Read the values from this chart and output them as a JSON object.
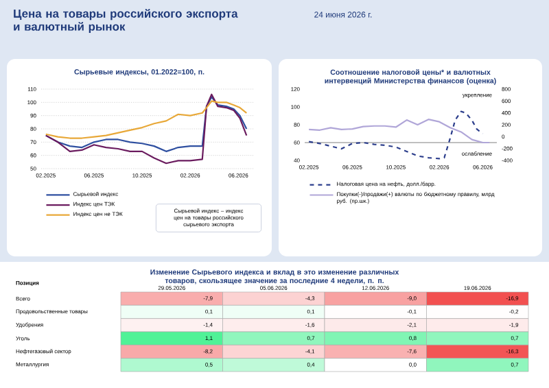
{
  "chart_data": [
    {
      "type": "line",
      "title": "Сырьевые индексы, 01.2022=100, п.",
      "annotations": [
        "Цена на товары российского экспорта и валютный рынок",
        "24 июня 2026 г.",
        "Сырьевой индекс – индекс цен на товары российского сырьевого экспорта"
      ],
      "x": [
        "2025-02-01",
        "2025-03-01",
        "2025-04-01",
        "2025-05-01",
        "2025-06-01",
        "2025-07-01",
        "2025-08-01",
        "2025-09-01",
        "2025-10-01",
        "2025-11-01",
        "2025-12-01",
        "2026-01-01",
        "2026-02-01",
        "2026-03-01",
        "2026-03-12",
        "2026-03-25",
        "2026-04-10",
        "2026-05-01",
        "2026-05-20",
        "2026-06-05",
        "2026-06-22"
      ],
      "series": [
        {
          "name": "Сырьевой индекс",
          "color": "#2e4fa0",
          "values": [
            75,
            70,
            67,
            66,
            70,
            72,
            72,
            70,
            69,
            67,
            63,
            66,
            67,
            67,
            97,
            104,
            98,
            97,
            95,
            90,
            80
          ]
        },
        {
          "name": "Индекс цен ТЭК",
          "color": "#6a1b5e",
          "values": [
            75,
            70,
            63,
            64,
            68,
            66,
            65,
            63,
            63,
            58,
            54,
            56,
            56,
            57,
            97,
            106,
            97,
            96,
            94,
            88,
            75
          ]
        },
        {
          "name": "Индекс цен не ТЭК",
          "color": "#e8a838",
          "values": [
            76,
            74,
            73,
            73,
            74,
            75,
            77,
            79,
            81,
            84,
            86,
            91,
            90,
            92,
            96,
            101,
            100,
            100,
            98,
            96,
            92
          ]
        }
      ],
      "xlim": [
        "2025-01-20",
        "2026-07-10"
      ],
      "xticks": [
        {
          "value": "2025-02",
          "label": "02.2025"
        },
        {
          "value": "2025-06",
          "label": "06.2025"
        },
        {
          "value": "2025-10",
          "label": "10.2025"
        },
        {
          "value": "2026-02",
          "label": "02.2026"
        },
        {
          "value": "2026-06",
          "label": "06.2026"
        }
      ],
      "ylim": [
        50,
        110
      ],
      "yticks": [
        50,
        60,
        70,
        80,
        90,
        100,
        110
      ],
      "grid": "y",
      "legend": "bottom"
    },
    {
      "type": "line",
      "title": "Соотношение налоговой цены* и валютных интервенций Министерства финансов (оценка)",
      "annotations": [
        "укрепление",
        "ослабление"
      ],
      "series": [
        {
          "name": "Налоговая цена на нефть, долл./барр.",
          "color": "#2c3e8c",
          "line_style": "dashed",
          "x": [
            "2025-02",
            "2025-03",
            "2025-04",
            "2025-05",
            "2025-06",
            "2025-07",
            "2025-08",
            "2025-09",
            "2025-10",
            "2025-11",
            "2025-12",
            "2026-01",
            "2026-02",
            "2026-02-15",
            "2026-03-01",
            "2026-03-15",
            "2026-04-01",
            "2026-04-15",
            "2026-05-01",
            "2026-05-15",
            "2026-06-01"
          ],
          "values": [
            61,
            59,
            56,
            53,
            59,
            60,
            58,
            57,
            55,
            50,
            45,
            43,
            42,
            43,
            65,
            85,
            95,
            93,
            85,
            75,
            70
          ]
        },
        {
          "name": "Покупки(-)/продажи(+) валюты по бюджетному правилу, млрд руб. (пр.шк.)",
          "color": "#b0a6d8",
          "axis": "y2",
          "x": [
            "2025-02",
            "2025-03",
            "2025-04",
            "2025-05",
            "2025-06",
            "2025-07",
            "2025-08",
            "2025-09",
            "2025-10",
            "2025-11",
            "2025-12",
            "2026-01",
            "2026-02",
            "2026-03",
            "2026-04",
            "2026-05",
            "2026-06",
            "2026-06-20"
          ],
          "values": [
            120,
            110,
            150,
            120,
            130,
            170,
            180,
            180,
            160,
            280,
            200,
            290,
            250,
            150,
            80,
            -50,
            -100,
            -100
          ]
        }
      ],
      "xlim": [
        "2025-01-20",
        "2026-07-10"
      ],
      "xticks": [
        {
          "value": "2025-02",
          "label": "02.2025"
        },
        {
          "value": "2025-06",
          "label": "06.2025"
        },
        {
          "value": "2025-10",
          "label": "10.2025"
        },
        {
          "value": "2026-02",
          "label": "02.2026"
        },
        {
          "value": "2026-06",
          "label": "06.2026"
        }
      ],
      "ylim": [
        40,
        120
      ],
      "yticks": [
        40,
        60,
        80,
        100,
        120
      ],
      "y2lim": [
        -400,
        800
      ],
      "y2ticks": [
        -400,
        -200,
        0,
        200,
        400,
        600,
        800
      ],
      "ref_lines": [
        {
          "axis": "y",
          "value": 60,
          "color": "#808080"
        }
      ],
      "legend": "bottom"
    },
    {
      "type": "heatmap",
      "title": "Изменение Сырьевого индекса и вклад в это изменение различных товаров, скользящее значение за последние 4 недели, п. п.",
      "ylabel": "Позиция",
      "categories": [
        "29.05.2026",
        "05.06.2026",
        "12.06.2026",
        "19.06.2026"
      ],
      "y_categories": [
        "Всего",
        "Продовольственные товары",
        "Удобрения",
        "Уголь",
        "Нефтегазовый сектор",
        "Металлургия"
      ],
      "cells": [
        [
          -7.9,
          -4.3,
          -9.0,
          -16.9
        ],
        [
          0.1,
          0.1,
          -0.1,
          -0.2
        ],
        [
          -1.4,
          -1.6,
          -2.1,
          -1.9
        ],
        [
          1.1,
          0.7,
          0.8,
          0.7
        ],
        [
          -8.2,
          -4.1,
          -7.6,
          -16.3
        ],
        [
          0.5,
          0.4,
          0.0,
          0.7
        ]
      ],
      "cell_labels": [
        [
          "-7,9",
          "-4,3",
          "-9,0",
          "-16,9"
        ],
        [
          "0,1",
          "0,1",
          "-0,1",
          "-0,2"
        ],
        [
          "-1,4",
          "-1,6",
          "-2,1",
          "-1,9"
        ],
        [
          "1,1",
          "0,7",
          "0,8",
          "0,7"
        ],
        [
          "-8,2",
          "-4,1",
          "-7,6",
          "-16,3"
        ],
        [
          "0,5",
          "0,4",
          "0,0",
          "0,7"
        ]
      ]
    }
  ]
}
